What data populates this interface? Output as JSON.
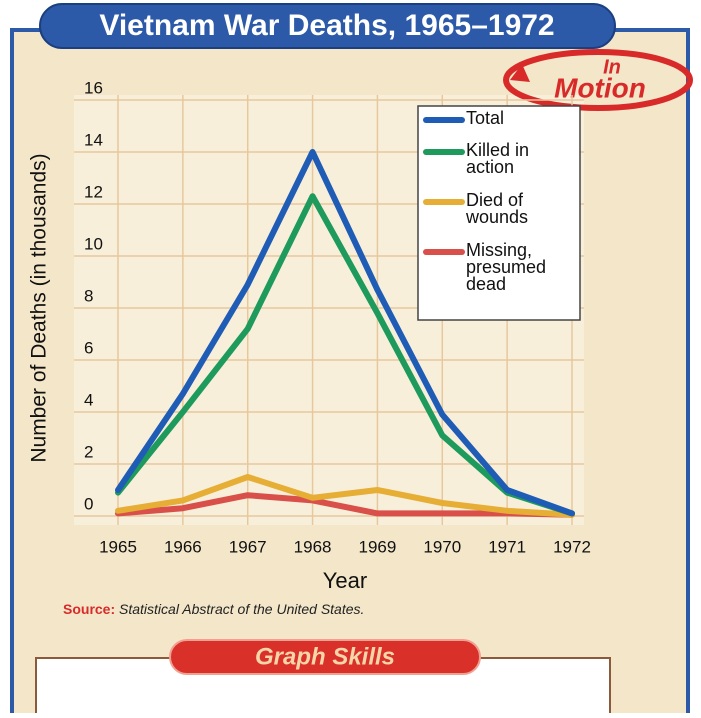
{
  "chart_data": {
    "type": "line",
    "title": "Vietnam War Deaths, 1965–1972",
    "xlabel": "Year",
    "ylabel": "Number of Deaths (in thousands)",
    "categories": [
      "1965",
      "1966",
      "1967",
      "1968",
      "1969",
      "1970",
      "1971",
      "1972"
    ],
    "series": [
      {
        "name": "Total",
        "color": "#1f5cb5",
        "values": [
          1.0,
          4.7,
          8.9,
          14.0,
          8.7,
          3.9,
          1.0,
          0.1
        ]
      },
      {
        "name": "Killed in action",
        "color": "#1e9a5c",
        "values": [
          0.9,
          4.0,
          7.2,
          12.3,
          7.8,
          3.1,
          0.9,
          0.1
        ]
      },
      {
        "name": "Died of wounds",
        "color": "#e6ae35",
        "values": [
          0.2,
          0.6,
          1.5,
          0.7,
          1.0,
          0.5,
          0.2,
          0.05
        ]
      },
      {
        "name": "Missing, presumed dead",
        "color": "#d9504a",
        "values": [
          0.1,
          0.3,
          0.8,
          0.6,
          0.1,
          0.1,
          0.1,
          0.05
        ]
      }
    ],
    "ylim": [
      0,
      16
    ],
    "yticks": [
      0,
      2,
      4,
      6,
      8,
      10,
      12,
      14,
      16
    ],
    "grid": true,
    "legend": "upper right",
    "source_label": "Source:",
    "source": "Statistical Abstract of the United States."
  },
  "logo": {
    "top": "In",
    "bottom": "Motion"
  },
  "section_title": "Graph Skills"
}
